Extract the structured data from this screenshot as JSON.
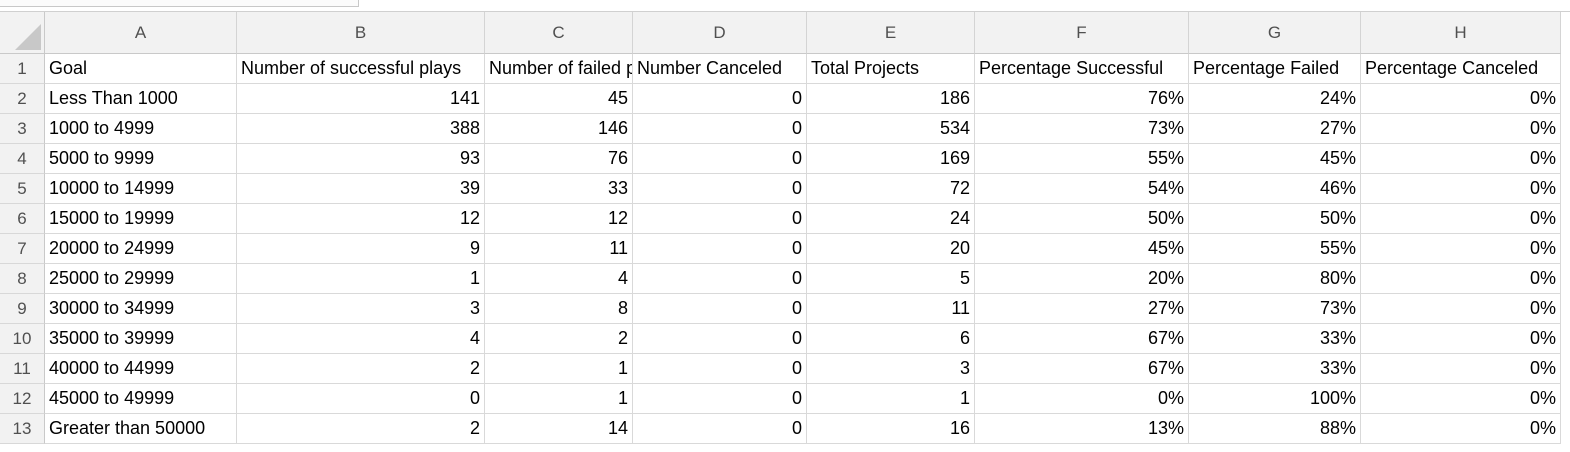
{
  "spreadsheet": {
    "column_letters": [
      "A",
      "B",
      "C",
      "D",
      "E",
      "F",
      "G",
      "H"
    ],
    "row_numbers": [
      "1",
      "2",
      "3",
      "4",
      "5",
      "6",
      "7",
      "8",
      "9",
      "10",
      "11",
      "12",
      "13"
    ],
    "header_row": [
      "Goal",
      "Number of successful plays",
      "Number of failed plays",
      "Number Canceled",
      "Total Projects",
      "Percentage Successful",
      "Percentage Failed",
      "Percentage Canceled"
    ],
    "rows": [
      [
        "Less Than 1000",
        "141",
        "45",
        "0",
        "186",
        "76%",
        "24%",
        "0%"
      ],
      [
        "1000 to 4999",
        "388",
        "146",
        "0",
        "534",
        "73%",
        "27%",
        "0%"
      ],
      [
        "5000 to 9999",
        "93",
        "76",
        "0",
        "169",
        "55%",
        "45%",
        "0%"
      ],
      [
        "10000 to 14999",
        "39",
        "33",
        "0",
        "72",
        "54%",
        "46%",
        "0%"
      ],
      [
        "15000 to 19999",
        "12",
        "12",
        "0",
        "24",
        "50%",
        "50%",
        "0%"
      ],
      [
        "20000 to 24999",
        "9",
        "11",
        "0",
        "20",
        "45%",
        "55%",
        "0%"
      ],
      [
        "25000 to 29999",
        "1",
        "4",
        "0",
        "5",
        "20%",
        "80%",
        "0%"
      ],
      [
        "30000 to 34999",
        "3",
        "8",
        "0",
        "11",
        "27%",
        "73%",
        "0%"
      ],
      [
        "35000 to 39999",
        "4",
        "2",
        "0",
        "6",
        "67%",
        "33%",
        "0%"
      ],
      [
        "40000 to 44999",
        "2",
        "1",
        "0",
        "3",
        "67%",
        "33%",
        "0%"
      ],
      [
        "45000 to 49999",
        "0",
        "1",
        "0",
        "1",
        "0%",
        "100%",
        "0%"
      ],
      [
        "Greater than 50000",
        "2",
        "14",
        "0",
        "16",
        "13%",
        "88%",
        "0%"
      ]
    ]
  }
}
